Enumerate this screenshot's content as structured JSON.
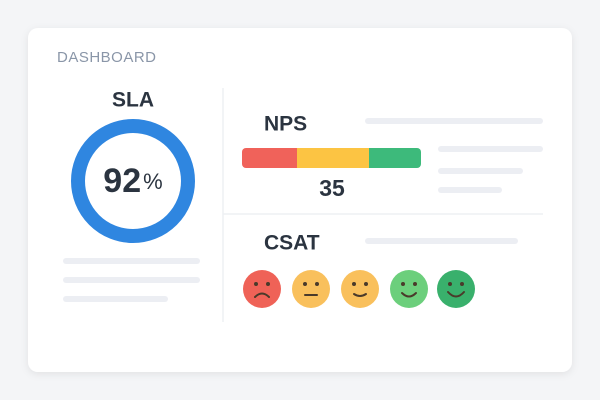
{
  "header": {
    "title": "DASHBOARD"
  },
  "sla": {
    "title": "SLA",
    "value": 92,
    "unit": "%"
  },
  "nps": {
    "title": "NPS",
    "value": 35
  },
  "csat": {
    "title": "CSAT"
  }
}
